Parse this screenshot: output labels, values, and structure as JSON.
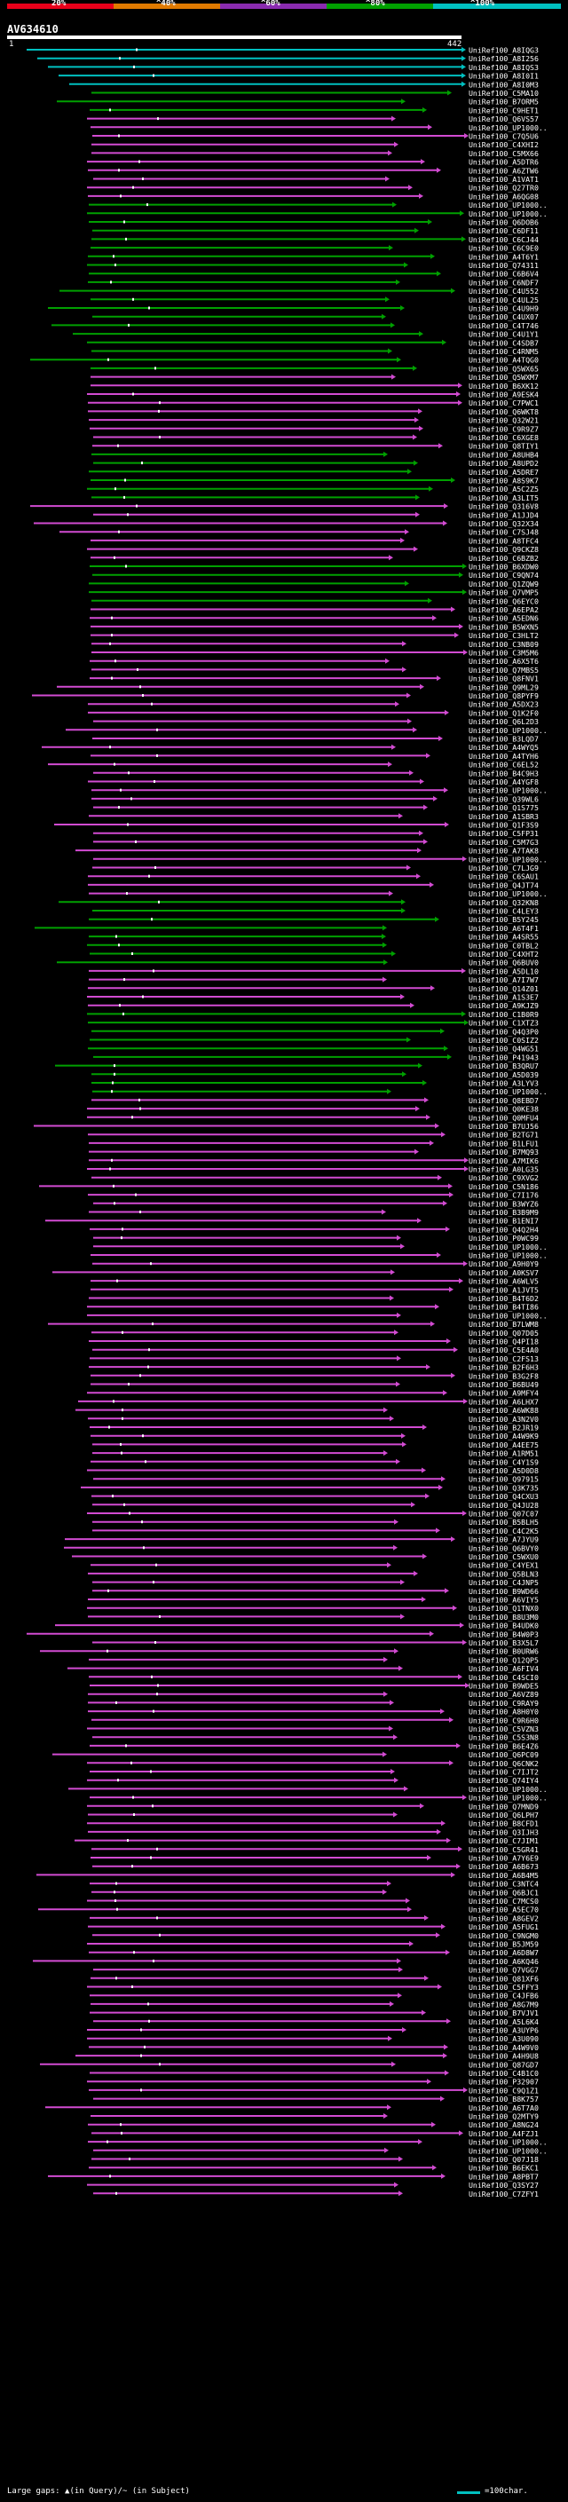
{
  "scale": {
    "labels": [
      "20%",
      "^40%",
      "^60%",
      "^80%",
      "^100%"
    ],
    "colors": [
      "#e8001a",
      "#e07a00",
      "#8a2bb0",
      "#00a000",
      "#00c0c0"
    ]
  },
  "query": {
    "id": "AV634610",
    "start": "1",
    "end": "442"
  },
  "legend": {
    "text": "Large gaps: ▲(in Query)/~ (in Subject)",
    "scale_text": "=100char."
  },
  "hits": [
    "UniRef100_A8IQG3",
    "UniRef100_A8I256",
    "UniRef100_A8IQS3",
    "UniRef100_A8I0I1",
    "UniRef100_A8I0M3",
    "UniRef100_C5MA10",
    "UniRef100_B7ORM5",
    "UniRef100_C9HET1",
    "UniRef100_Q6VS57",
    "UniRef100_UP1000..",
    "UniRef100_C7Q5U6",
    "UniRef100_C4XHI2",
    "UniRef100_C5MX66",
    "UniRef100_A5DTR6",
    "UniRef100_A6ZTW6",
    "UniRef100_A1VAT1",
    "UniRef100_Q27TR0",
    "UniRef100_A6QG08",
    "UniRef100_UP1000..",
    "UniRef100_UP1000..",
    "UniRef100_Q6DOB6",
    "UniRef100_C6DF11",
    "UniRef100_C6CJ44",
    "UniRef100_C6C9E0",
    "UniRef100_A4T6Y1",
    "UniRef100_Q74311",
    "UniRef100_C6B6V4",
    "UniRef100_C6NDF7",
    "UniRef100_C4U552",
    "UniRef100_C4UL25",
    "UniRef100_C4U9H9",
    "UniRef100_C4UX07",
    "UniRef100_C4T746",
    "UniRef100_C4U1Y1",
    "UniRef100_C4SDB7",
    "UniRef100_C4RNM5",
    "UniRef100_A4TQG0",
    "UniRef100_Q5WX65",
    "UniRef100_Q5WXM7",
    "UniRef100_B6XK12",
    "UniRef100_A9ESK4",
    "UniRef100_C7PWC1",
    "UniRef100_Q6WKT8",
    "UniRef100_Q32W21",
    "UniRef100_C9R9Z7",
    "UniRef100_C6XGE8",
    "UniRef100_Q8TIY1",
    "UniRef100_A8UHB4",
    "UniRef100_A8UPD2",
    "UniRef100_A5DRE7",
    "UniRef100_A8S9K7",
    "UniRef100_A5C2Z5",
    "UniRef100_A3LIT5",
    "UniRef100_Q316V8",
    "UniRef100_A1JJD4",
    "UniRef100_Q32X34",
    "UniRef100_C7SJ48",
    "UniRef100_A8TFC4",
    "UniRef100_Q9CKZ8",
    "UniRef100_C6BZB2",
    "UniRef100_B6XDW0",
    "UniRef100_C9QN74",
    "UniRef100_Q1ZQW9",
    "UniRef100_Q7VMP5",
    "UniRef100_Q6EYC0",
    "UniRef100_A6EPA2",
    "UniRef100_A5EDN6",
    "UniRef100_B5WXN5",
    "UniRef100_C3HLT2",
    "UniRef100_C3NB09",
    "UniRef100_C3M5M6",
    "UniRef100_A6X5T6",
    "UniRef100_Q7MBS5",
    "UniRef100_Q8FNV1",
    "UniRef100_Q9ML29",
    "UniRef100_Q8PYF9",
    "UniRef100_A5DX23",
    "UniRef100_Q1K2F0",
    "UniRef100_Q6L2D3",
    "UniRef100_UP1000..",
    "UniRef100_B3LQD7",
    "UniRef100_A4WYQ5",
    "UniRef100_A4TYH6",
    "UniRef100_C6EL52",
    "UniRef100_B4C9H3",
    "UniRef100_A4YGF8",
    "UniRef100_UP1000..",
    "UniRef100_Q39WL6",
    "UniRef100_Q1S775",
    "UniRef100_A1SBR3",
    "UniRef100_Q1F3S9",
    "UniRef100_C5FP31",
    "UniRef100_C5M7G3",
    "UniRef100_A7TAK8",
    "UniRef100_UP1000..",
    "UniRef100_C7LJG9",
    "UniRef100_C6SAU1",
    "UniRef100_Q4JT74",
    "UniRef100_UP1000..",
    "UniRef100_Q32KN8",
    "UniRef100_C4LEY3",
    "UniRef100_B5Y245",
    "UniRef100_A6T4F1",
    "UniRef100_A4SR55",
    "UniRef100_C0TBL2",
    "UniRef100_C4XHT2",
    "UniRef100_Q6BUV0",
    "UniRef100_A5DL10",
    "UniRef100_A7I7W7",
    "UniRef100_Q14Z01",
    "UniRef100_A1S3E7",
    "UniRef100_A9KJZ9",
    "UniRef100_C1B0R9",
    "UniRef100_C1XTZ3",
    "UniRef100_Q4Q3P0",
    "UniRef100_C0SIZ2",
    "UniRef100_Q4WG51",
    "UniRef100_P41943",
    "UniRef100_B3QRU7",
    "UniRef100_A5D039",
    "UniRef100_A3LYV3",
    "UniRef100_UP1000..",
    "UniRef100_Q8EBD7",
    "UniRef100_Q0KE38",
    "UniRef100_Q0MFU4",
    "UniRef100_B7UJ56",
    "UniRef100_B2TG71",
    "UniRef100_B1LFU1",
    "UniRef100_B7MQ93",
    "UniRef100_A7MIK6",
    "UniRef100_A0LG35",
    "UniRef100_C9XVG2",
    "UniRef100_C5N186",
    "UniRef100_C7I176",
    "UniRef100_B3WYZ6",
    "UniRef100_B3B9M9",
    "UniRef100_B1ENI7",
    "UniRef100_Q4Q2H4",
    "UniRef100_P0WC99",
    "UniRef100_UP1000..",
    "UniRef100_UP1000..",
    "UniRef100_A9H0Y9",
    "UniRef100_A0KSV7",
    "UniRef100_A6WLV5",
    "UniRef100_A1JVT5",
    "UniRef100_B4T6D2",
    "UniRef100_B4TI86",
    "UniRef100_UP1000..",
    "UniRef100_B7LWM8",
    "UniRef100_Q07D05",
    "UniRef100_Q4PI18",
    "UniRef100_C5E4A0",
    "UniRef100_C2FS13",
    "UniRef100_B2F6H3",
    "UniRef100_B3G2F8",
    "UniRef100_B6BU49",
    "UniRef100_A9MFY4",
    "UniRef100_A6LHX7",
    "UniRef100_A6WK88",
    "UniRef100_A3N2V0",
    "UniRef100_B2JR19",
    "UniRef100_A4W9K9",
    "UniRef100_A4EE75",
    "UniRef100_A1RM51",
    "UniRef100_C4Y1S9",
    "UniRef100_A5D0D8",
    "UniRef100_Q97915",
    "UniRef100_Q3K735",
    "UniRef100_Q4CXU3",
    "UniRef100_Q4JU28",
    "UniRef100_Q07C07",
    "UniRef100_B5BLH5",
    "UniRef100_C4C2K5",
    "UniRef100_A7JYU9",
    "UniRef100_Q6BVY0",
    "UniRef100_C5WXU0",
    "UniRef100_C4YEX1",
    "UniRef100_Q5BLN3",
    "UniRef100_C4JNP5",
    "UniRef100_B9WD66",
    "UniRef100_A6VIY5",
    "UniRef100_Q1TNX0",
    "UniRef100_B8U3M0",
    "UniRef100_B4UDK0",
    "UniRef100_B4W0P3",
    "UniRef100_B3X5L7",
    "UniRef100_B0URW6",
    "UniRef100_Q12QP5",
    "UniRef100_A6FIV4",
    "UniRef100_C4SCI0",
    "UniRef100_B9WDE5",
    "UniRef100_A6VZ89",
    "UniRef100_C9RAY9",
    "UniRef100_A8H0Y0",
    "UniRef100_C9R6H0",
    "UniRef100_C5VZN3",
    "UniRef100_C5S3N8",
    "UniRef100_B6E4Z6",
    "UniRef100_Q6PC09",
    "UniRef100_Q6CNK2",
    "UniRef100_C7IJT2",
    "UniRef100_Q74IY4",
    "UniRef100_UP1000..",
    "UniRef100_UP1000..",
    "UniRef100_Q7MND9",
    "UniRef100_Q6LPH7",
    "UniRef100_B8CFD1",
    "UniRef100_Q3IJH3",
    "UniRef100_C7JIM1",
    "UniRef100_C5GR41",
    "UniRef100_A7Y6E9",
    "UniRef100_A6B673",
    "UniRef100_A6B4M5",
    "UniRef100_C3NTC4",
    "UniRef100_Q6BJC1",
    "UniRef100_C7MCS0",
    "UniRef100_A5EC70",
    "UniRef100_A8GEV2",
    "UniRef100_A5FUG1",
    "UniRef100_C9NGM0",
    "UniRef100_B5JM59",
    "UniRef100_A6D8W7",
    "UniRef100_A6KQ46",
    "UniRef100_Q7VGG7",
    "UniRef100_Q81XF6",
    "UniRef100_C5FFY3",
    "UniRef100_C4JFB6",
    "UniRef100_A8G7M9",
    "UniRef100_B7VJV1",
    "UniRef100_A5L6K4",
    "UniRef100_A3UYP6",
    "UniRef100_A3U090",
    "UniRef100_A4W9V0",
    "UniRef100_A4H9U8",
    "UniRef100_Q87GD7",
    "UniRef100_C4B1C0",
    "UniRef100_P32907",
    "UniRef100_C9Q1Z1",
    "UniRef100_B8K757",
    "UniRef100_A6T7A0",
    "UniRef100_Q2MTY9",
    "UniRef100_A8NG24",
    "UniRef100_A4FZJ1",
    "UniRef100_UP1000..",
    "UniRef100_UP1000..",
    "UniRef100_Q07J18",
    "UniRef100_B6EKC1",
    "UniRef100_A8PBT7",
    "UniRef100_Q3SY27",
    "UniRef100_C7ZFY1"
  ]
}
